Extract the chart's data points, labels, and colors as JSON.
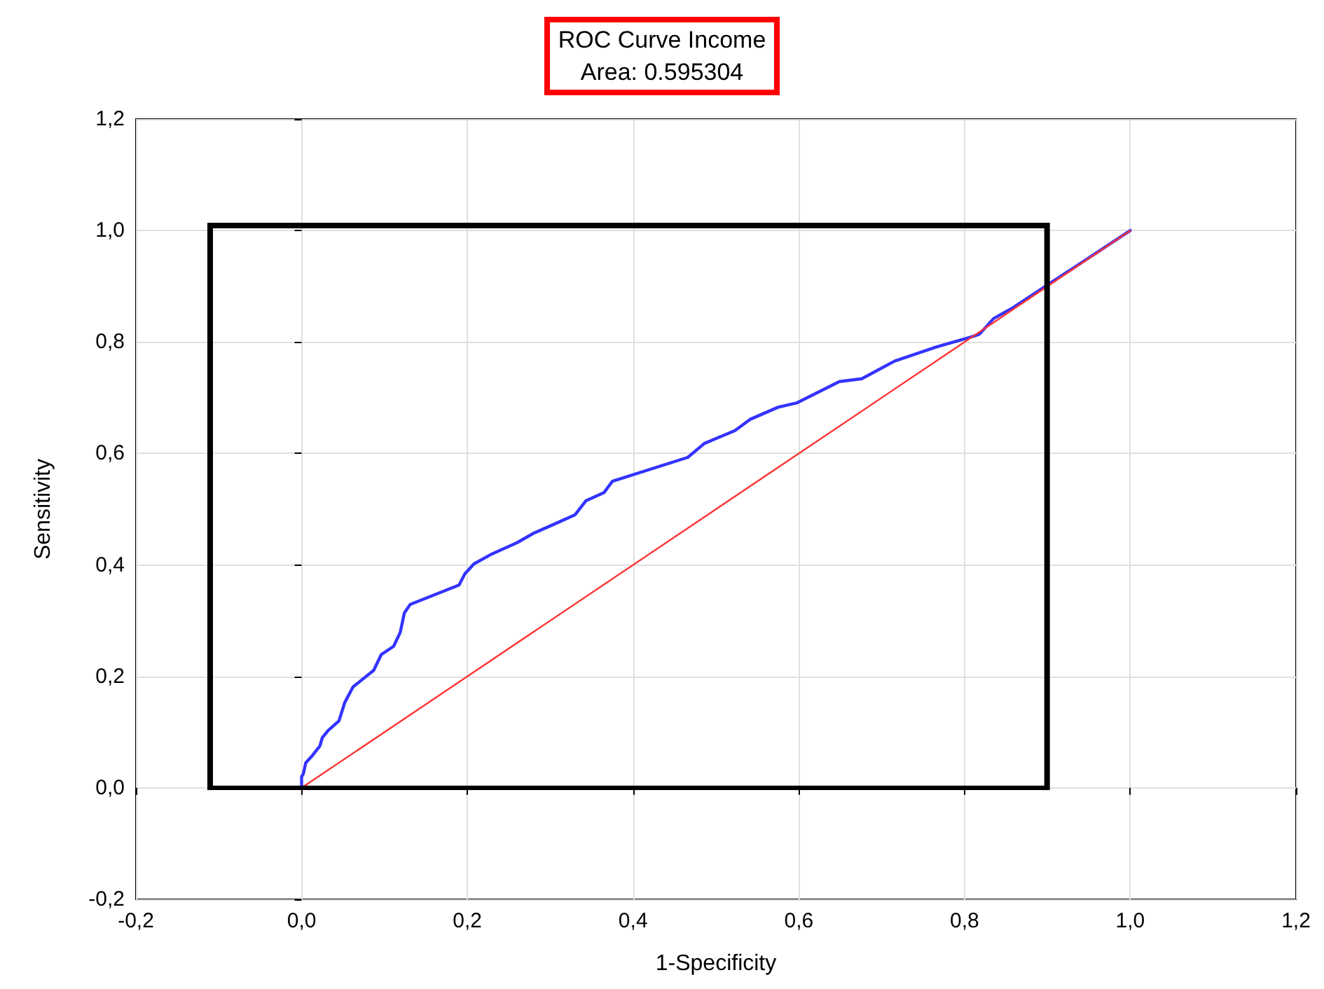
{
  "chart_data": {
    "type": "line",
    "title": "ROC Curve Income",
    "subtitle": "Area: 0.595304",
    "xlabel": "1-Specificity",
    "ylabel": "Sensitivity",
    "xlim": [
      -0.2,
      1.2
    ],
    "ylim": [
      -0.2,
      1.2
    ],
    "xticks": [
      {
        "value": -0.2,
        "label": "-0,2"
      },
      {
        "value": 0,
        "label": "0,0"
      },
      {
        "value": 0.2,
        "label": "0,2"
      },
      {
        "value": 0.4,
        "label": "0,4"
      },
      {
        "value": 0.6,
        "label": "0,6"
      },
      {
        "value": 0.8,
        "label": "0,8"
      },
      {
        "value": 1,
        "label": "1,0"
      },
      {
        "value": 1.2,
        "label": "1,2"
      }
    ],
    "yticks": [
      {
        "value": -0.2,
        "label": "-0,2"
      },
      {
        "value": 0,
        "label": "0,0"
      },
      {
        "value": 0.2,
        "label": "0,2"
      },
      {
        "value": 0.4,
        "label": "0,4"
      },
      {
        "value": 0.6,
        "label": "0,6"
      },
      {
        "value": 0.8,
        "label": "0,8"
      },
      {
        "value": 1,
        "label": "1,0"
      },
      {
        "value": 1.2,
        "label": "1,2"
      }
    ],
    "grid": true,
    "marker": "none",
    "series": [
      {
        "color": "#3333ff",
        "x": [
          0,
          0,
          0.002,
          0.005,
          0.013,
          0.022,
          0.025,
          0.032,
          0.045,
          0.052,
          0.062,
          0.087,
          0.096,
          0.111,
          0.119,
          0.124,
          0.131,
          0.19,
          0.197,
          0.208,
          0.23,
          0.26,
          0.28,
          0.3,
          0.33,
          0.343,
          0.365,
          0.375,
          0.466,
          0.486,
          0.523,
          0.541,
          0.575,
          0.598,
          0.649,
          0.676,
          0.716,
          0.766,
          0.808,
          0.818,
          0.835,
          0.859,
          1
        ],
        "values": [
          0,
          0.02,
          0.025,
          0.045,
          0.058,
          0.075,
          0.09,
          0.103,
          0.12,
          0.153,
          0.181,
          0.211,
          0.239,
          0.254,
          0.279,
          0.314,
          0.329,
          0.364,
          0.384,
          0.402,
          0.42,
          0.44,
          0.457,
          0.47,
          0.49,
          0.515,
          0.53,
          0.55,
          0.593,
          0.618,
          0.641,
          0.661,
          0.683,
          0.691,
          0.729,
          0.734,
          0.766,
          0.791,
          0.809,
          0.814,
          0.842,
          0.862,
          1
        ]
      },
      {
        "color": "#ff3333",
        "x": [
          0,
          1
        ],
        "values": [
          0,
          1
        ]
      }
    ]
  }
}
